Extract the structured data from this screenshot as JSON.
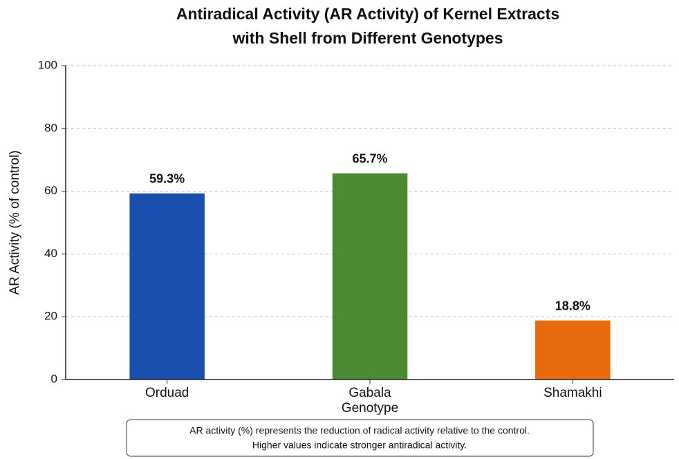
{
  "chart_data": {
    "type": "bar",
    "title": [
      "Antiradical Activity (AR Activity) of Kernel Extracts",
      "with Shell from Different Genotypes"
    ],
    "xlabel": "Genotype",
    "ylabel": "AR Activity (% of control)",
    "categories": [
      "Orduad",
      "Gabala",
      "Shamakhi"
    ],
    "values": [
      59.3,
      65.7,
      18.8
    ],
    "value_labels": [
      "59.3%",
      "65.7%",
      "18.8%"
    ],
    "colors": [
      "#1a4fb0",
      "#4a8a32",
      "#e8690e"
    ],
    "ylim": [
      0,
      100
    ],
    "yticks": [
      0,
      20,
      40,
      60,
      80,
      100
    ],
    "grid": true,
    "note": [
      "AR activity (%) represents the reduction of radical activity relative to the control.",
      "Higher values indicate stronger antiradical activity."
    ]
  }
}
